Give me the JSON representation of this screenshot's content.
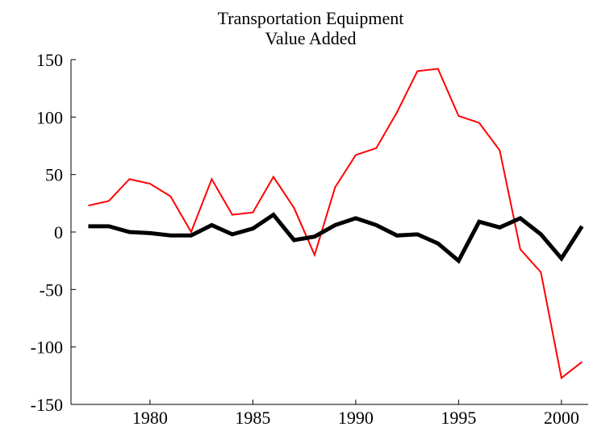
{
  "chart_data": {
    "type": "line",
    "title": "Transportation Equipment",
    "subtitle": "Value Added",
    "x": [
      1977,
      1978,
      1979,
      1980,
      1981,
      1982,
      1983,
      1984,
      1985,
      1986,
      1987,
      1988,
      1989,
      1990,
      1991,
      1992,
      1993,
      1994,
      1995,
      1996,
      1997,
      1998,
      1999,
      2000,
      2001
    ],
    "series": [
      {
        "color": "#ff0000",
        "width": 2,
        "values": [
          23,
          27,
          46,
          42,
          31,
          0,
          46,
          15,
          17,
          48,
          21,
          -20,
          39,
          67,
          73,
          104,
          140,
          142,
          101,
          95,
          71,
          -15,
          -35,
          -127,
          -113
        ]
      },
      {
        "color": "#000000",
        "width": 5,
        "values": [
          5,
          5,
          0,
          -1,
          -3,
          -3,
          6,
          -2,
          3,
          15,
          -7,
          -4,
          6,
          12,
          6,
          -3,
          -2,
          -10,
          -25,
          9,
          4,
          12,
          -2,
          -23,
          5
        ]
      }
    ],
    "xlim": [
      1976.16,
      2001.3
    ],
    "xticks": [
      1980,
      1985,
      1990,
      1995,
      2000
    ],
    "ylim": [
      -150,
      150
    ],
    "yticks": [
      -150,
      -100,
      -50,
      0,
      50,
      100,
      150
    ]
  }
}
